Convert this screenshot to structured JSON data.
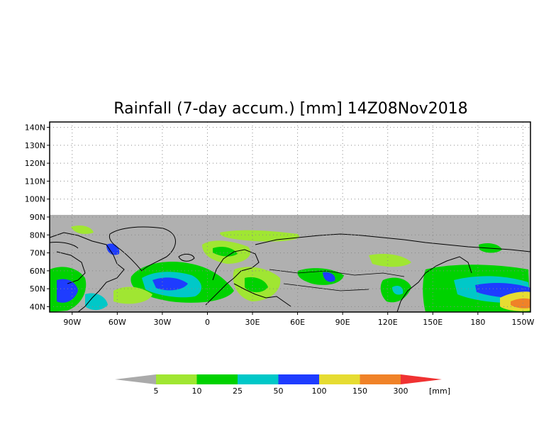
{
  "title": "Rainfall (7-day accum.) [mm] 14Z08Nov2018",
  "map": {
    "lat_labels": [
      "140N",
      "130N",
      "120N",
      "110N",
      "100N",
      "90N",
      "80N",
      "70N",
      "60N",
      "50N",
      "40N"
    ],
    "lon_labels": [
      "90W",
      "60W",
      "30W",
      "0",
      "30E",
      "60E",
      "90E",
      "120E",
      "150E",
      "180",
      "150W"
    ],
    "lat_range": [
      37,
      143
    ],
    "lon_range": [
      -105,
      215
    ],
    "data_extent_lat": [
      37,
      90
    ],
    "land_color": "#b0b0b0",
    "grid": "dotted"
  },
  "legend": {
    "unit": "[mm]",
    "thresholds": [
      "5",
      "10",
      "25",
      "50",
      "100",
      "150",
      "300"
    ],
    "colors": [
      "#aaaaaa",
      "#a0e632",
      "#00d200",
      "#00c8c8",
      "#1e3cff",
      "#e6dc32",
      "#f08228",
      "#f03232"
    ]
  }
}
